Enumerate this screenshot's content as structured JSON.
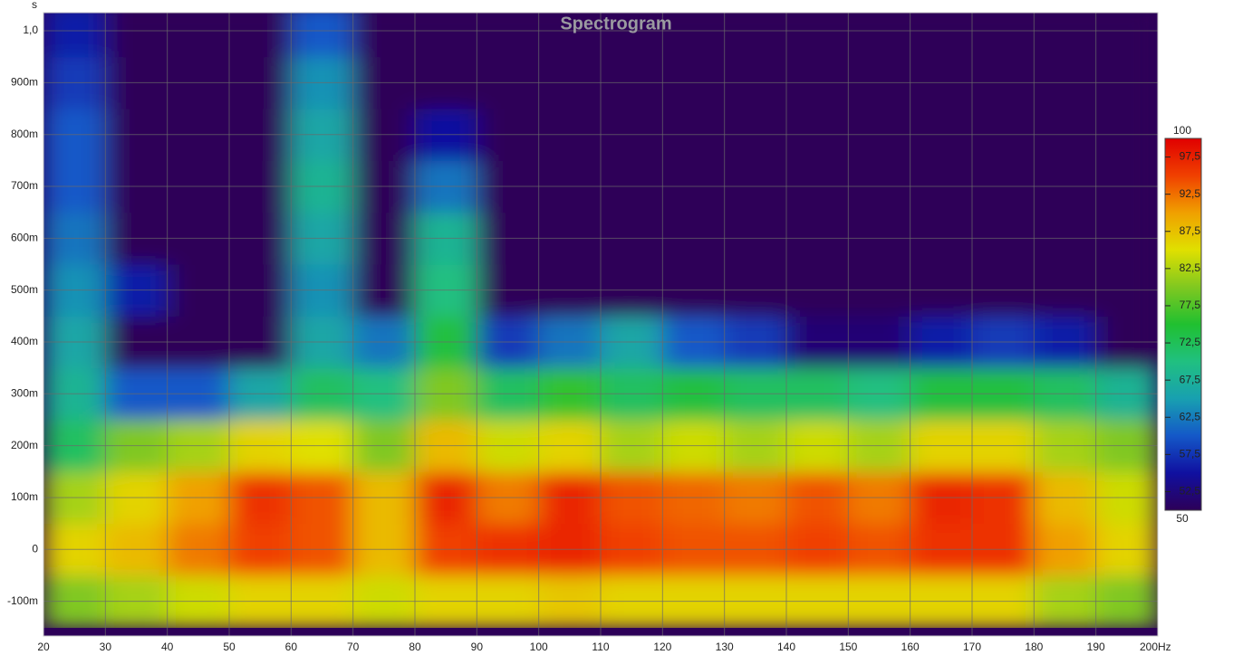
{
  "chart_data": {
    "type": "heatmap",
    "title": "Spectrogram",
    "x_unit": "Hz",
    "y_unit": "s",
    "xlim": [
      20,
      200
    ],
    "ylim": [
      -0.167,
      1.035
    ],
    "xticks": [
      20,
      30,
      40,
      50,
      60,
      70,
      80,
      90,
      100,
      110,
      120,
      130,
      140,
      150,
      160,
      170,
      180,
      190,
      200
    ],
    "yticks": [
      {
        "value": -0.1,
        "label": "-100m"
      },
      0,
      {
        "value": 0.1,
        "label": "100m"
      },
      {
        "value": 0.2,
        "label": "200m"
      },
      {
        "value": 0.3,
        "label": "300m"
      },
      {
        "value": 0.4,
        "label": "400m"
      },
      {
        "value": 0.5,
        "label": "500m"
      },
      {
        "value": 0.6,
        "label": "600m"
      },
      {
        "value": 0.7,
        "label": "700m"
      },
      {
        "value": 0.8,
        "label": "800m"
      },
      {
        "value": 0.9,
        "label": "900m"
      },
      {
        "value": 1.0,
        "label": "1,0"
      }
    ],
    "grid": true,
    "x": [
      25,
      35,
      45,
      55,
      65,
      75,
      85,
      95,
      105,
      115,
      125,
      135,
      145,
      155,
      165,
      175,
      185,
      195
    ],
    "y": [
      -0.1,
      0,
      0.1,
      0.2,
      0.3,
      0.4,
      0.5,
      0.6,
      0.7,
      0.8,
      0.9,
      1.0
    ],
    "z": [
      [
        80,
        82,
        84,
        86,
        86,
        84,
        86,
        86,
        87,
        86,
        86,
        86,
        86,
        86,
        86,
        86,
        82,
        80
      ],
      [
        86,
        88,
        92,
        95,
        94,
        88,
        95,
        96,
        97,
        95,
        94,
        94,
        95,
        94,
        96,
        96,
        90,
        86
      ],
      [
        82,
        86,
        90,
        96,
        94,
        88,
        97,
        92,
        97,
        94,
        93,
        92,
        94,
        92,
        97,
        96,
        88,
        84
      ],
      [
        72,
        80,
        82,
        86,
        85,
        80,
        88,
        84,
        86,
        82,
        84,
        82,
        84,
        82,
        86,
        86,
        82,
        80
      ],
      [
        68,
        60,
        60,
        66,
        72,
        70,
        80,
        72,
        76,
        72,
        74,
        72,
        72,
        70,
        74,
        74,
        72,
        68
      ],
      [
        66,
        50,
        50,
        50,
        66,
        62,
        74,
        58,
        62,
        66,
        60,
        58,
        52,
        52,
        56,
        58,
        56,
        50
      ],
      [
        64,
        56,
        50,
        50,
        64,
        50,
        70,
        50,
        50,
        50,
        50,
        50,
        50,
        50,
        50,
        50,
        50,
        50
      ],
      [
        62,
        50,
        50,
        50,
        66,
        50,
        68,
        50,
        50,
        50,
        50,
        50,
        50,
        50,
        50,
        50,
        50,
        50
      ],
      [
        60,
        50,
        50,
        50,
        68,
        50,
        62,
        50,
        50,
        50,
        50,
        50,
        50,
        50,
        50,
        50,
        50,
        50
      ],
      [
        60,
        50,
        50,
        50,
        66,
        50,
        55,
        50,
        50,
        50,
        50,
        50,
        50,
        50,
        50,
        50,
        50,
        50
      ],
      [
        58,
        50,
        50,
        50,
        64,
        50,
        50,
        50,
        50,
        50,
        50,
        50,
        50,
        50,
        50,
        50,
        50,
        50
      ],
      [
        56,
        50,
        50,
        50,
        60,
        50,
        50,
        50,
        50,
        50,
        50,
        50,
        50,
        50,
        50,
        50,
        50,
        50
      ]
    ],
    "clim": [
      50,
      100
    ],
    "colors": [
      "#2d0058",
      "#1010a0",
      "#1458c8",
      "#18a0b0",
      "#20c080",
      "#20c030",
      "#80c820",
      "#e0e000",
      "#f0a000",
      "#f04000",
      "#e00000"
    ],
    "colorbar_ticks": [
      {
        "value": 52.5,
        "label": "52,5"
      },
      {
        "value": 57.5,
        "label": "57,5"
      },
      {
        "value": 62.5,
        "label": "62,5"
      },
      {
        "value": 67.5,
        "label": "67,5"
      },
      {
        "value": 72.5,
        "label": "72,5"
      },
      {
        "value": 77.5,
        "label": "77,5"
      },
      {
        "value": 82.5,
        "label": "82,5"
      },
      {
        "value": 87.5,
        "label": "87,5"
      },
      {
        "value": 92.5,
        "label": "92,5"
      },
      {
        "value": 97.5,
        "label": "97,5"
      }
    ],
    "colorbar_ends": [
      50,
      100
    ]
  }
}
